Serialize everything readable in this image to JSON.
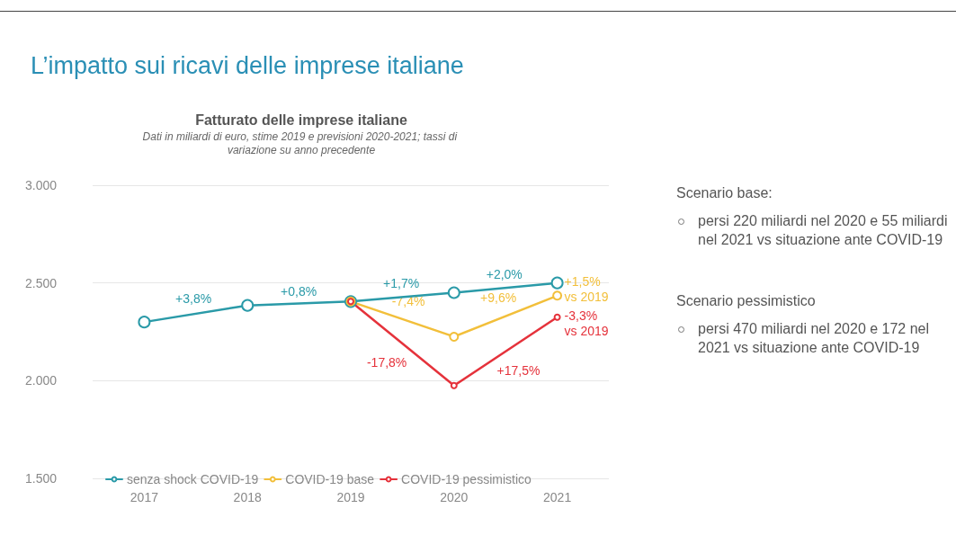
{
  "chart_data": {
    "type": "line",
    "title": "Fatturato delle imprese italiane",
    "subtitle": "Dati in miliardi di euro, stime 2019 e previsioni 2020-2021; tassi di variazione su anno precedente",
    "categories": [
      "2017",
      "2018",
      "2019",
      "2020",
      "2021"
    ],
    "series": [
      {
        "name": "senza shock COVID-19",
        "color": "#2a9aa8",
        "values": [
          2300,
          2385,
          2405,
          2450,
          2500
        ]
      },
      {
        "name": "COVID-19 base",
        "color": "#f2bf3a",
        "values": [
          null,
          null,
          2405,
          2225,
          2435
        ]
      },
      {
        "name": "COVID-19 pessimistico",
        "color": "#e5323b",
        "values": [
          null,
          null,
          2405,
          1975,
          2325
        ]
      }
    ],
    "ylim": [
      1500,
      3000
    ],
    "yticks": [
      {
        "value": 1500,
        "label": "1.500"
      },
      {
        "value": 2000,
        "label": "2.000"
      },
      {
        "value": 2500,
        "label": "2.500"
      },
      {
        "value": 3000,
        "label": "3.000"
      }
    ],
    "grid": "y",
    "legend": "bottom",
    "marker": "circle",
    "annotations": [
      "L’impatto sui ricavi delle imprese italiane",
      "Scenario base:",
      "persi 220 miliardi nel 2020 e 55 miliardi nel 2021 vs situazione ante COVID-19",
      "Scenario pessimistico",
      "persi 470 miliardi nel 2020 e 172 nel 2021 vs situazione ante COVID-19",
      "+3,8%",
      "+0,8%",
      "+1,7%",
      "+2,0%",
      "-7,4%",
      "+9,6%",
      "+1,5% vs 2019",
      "-17,8%",
      "+17,5%",
      "-3,3% vs 2019"
    ]
  }
}
